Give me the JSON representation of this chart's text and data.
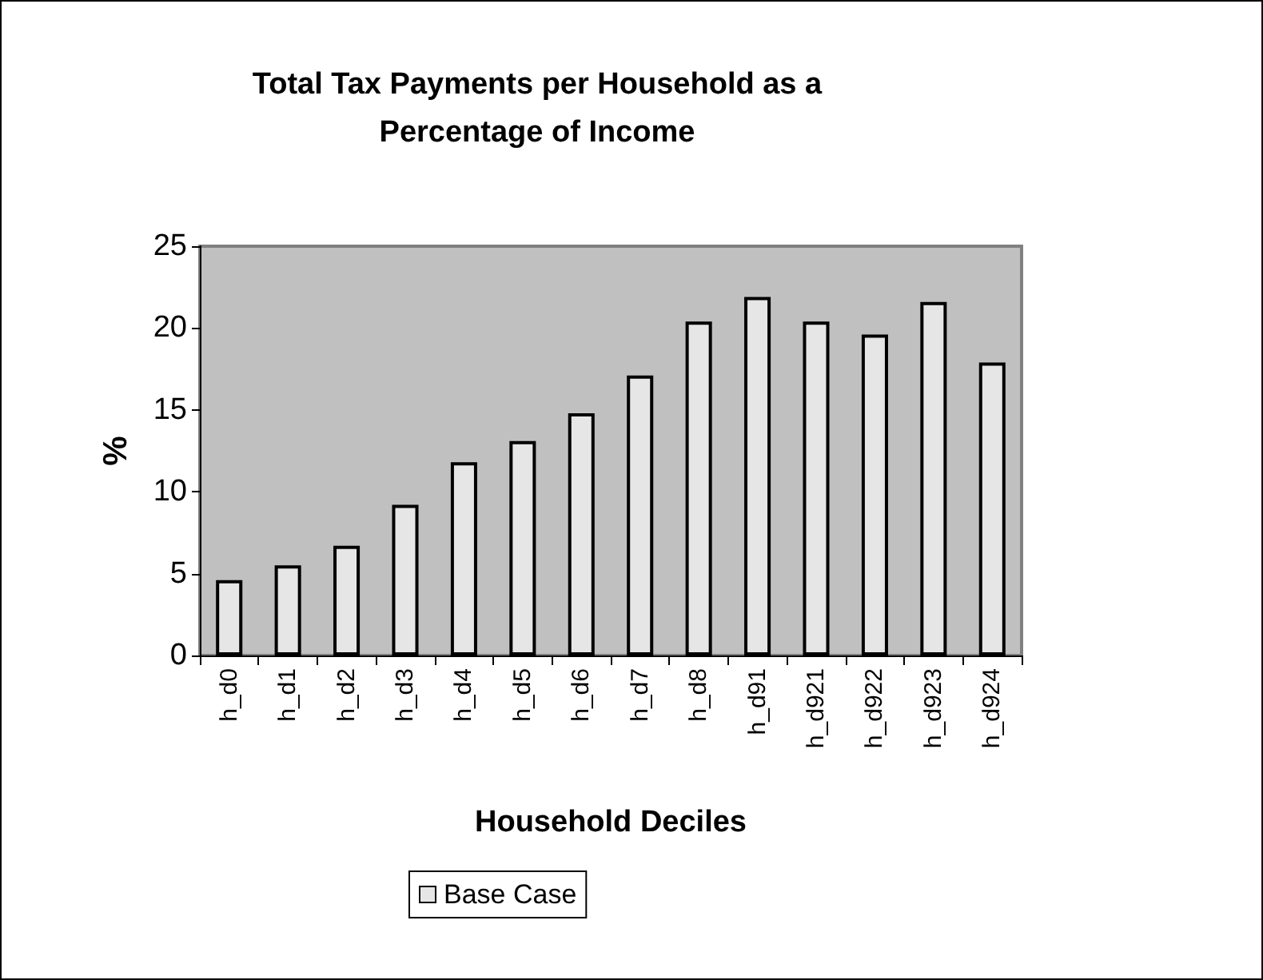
{
  "chart_data": {
    "type": "bar",
    "title": "Total Tax Payments per Household as a\nPercentage of Income",
    "xlabel": "Household Deciles",
    "ylabel": "%",
    "categories": [
      "h_d0",
      "h_d1",
      "h_d2",
      "h_d3",
      "h_d4",
      "h_d5",
      "h_d6",
      "h_d7",
      "h_d8",
      "h_d91",
      "h_d921",
      "h_d922",
      "h_d923",
      "h_d924"
    ],
    "series": [
      {
        "name": "Base Case",
        "color": "#e6e6e6",
        "values": [
          4.6,
          5.5,
          6.7,
          9.2,
          11.8,
          13.1,
          14.8,
          17.1,
          20.4,
          21.9,
          20.4,
          19.6,
          21.6,
          17.9
        ]
      }
    ],
    "ylim": [
      0,
      25
    ],
    "yticks": [
      0,
      5,
      10,
      15,
      20,
      25
    ],
    "grid": false,
    "legend": "bottom"
  }
}
